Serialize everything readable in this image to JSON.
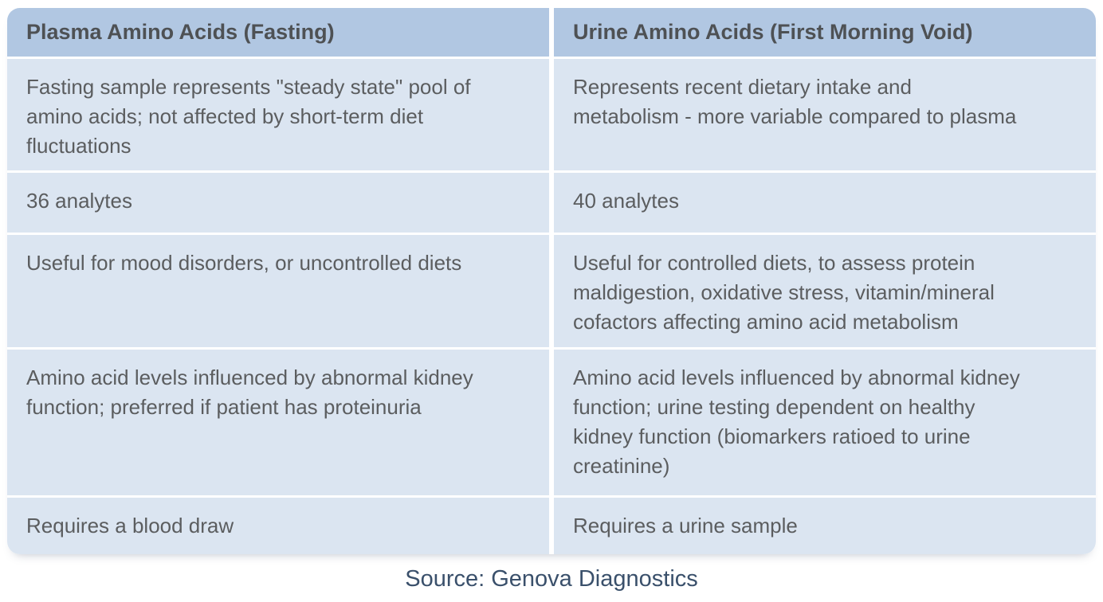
{
  "colors": {
    "header_bg": "#b1c7e2",
    "row_bg": "#dbe5f1",
    "header_text": "#4e5154",
    "body_text": "#5b5d5f",
    "source_text": "#3a506b"
  },
  "table": {
    "headers": [
      "Plasma Amino Acids (Fasting)",
      "Urine Amino Acids (First Morning Void)"
    ],
    "rows": [
      {
        "plasma": "Fasting sample represents \"steady state\" pool of\namino acids; not affected by short-term diet\nfluctuations",
        "urine": "Represents recent dietary intake and\nmetabolism - more variable compared to plasma"
      },
      {
        "plasma": "36 analytes",
        "urine": "40 analytes"
      },
      {
        "plasma": "Useful for mood disorders, or uncontrolled diets",
        "urine": "Useful for controlled diets, to assess protein\nmaldigestion, oxidative stress, vitamin/mineral\ncofactors affecting amino acid metabolism"
      },
      {
        "plasma": "Amino acid levels influenced by abnormal kidney\nfunction; preferred if patient has proteinuria",
        "urine": "Amino acid levels influenced by abnormal kidney\nfunction; urine testing dependent on healthy\nkidney function (biomarkers ratioed to urine\ncreatinine)"
      },
      {
        "plasma": "Requires a blood draw",
        "urine": "Requires a urine sample"
      }
    ]
  },
  "source": {
    "label": "Source: Genova Diagnostics"
  }
}
